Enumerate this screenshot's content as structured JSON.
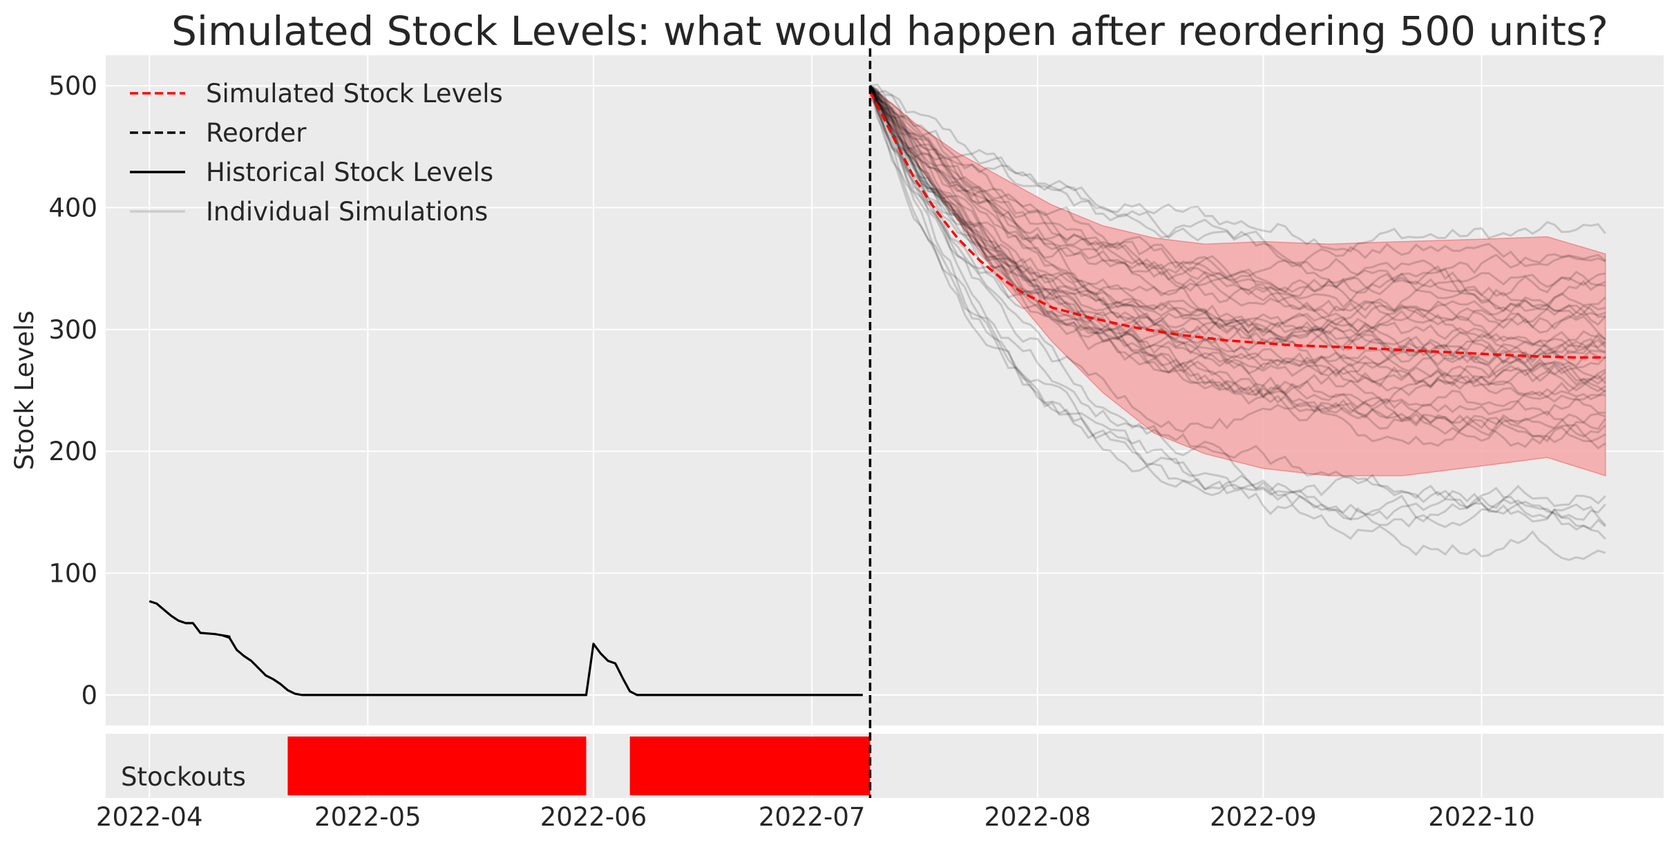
{
  "chart_data": [
    {
      "type": "line",
      "title": "Simulated Stock Levels: what would happen after reordering 500 units?",
      "ylabel": "Stock Levels",
      "ylim": [
        -25,
        525
      ],
      "xlim": [
        "2022-03-26",
        "2022-10-26"
      ],
      "yticks": [
        0,
        100,
        200,
        300,
        400,
        500
      ],
      "ytick_labels": [
        "0",
        "100",
        "200",
        "300",
        "400",
        "500"
      ],
      "xticks": [
        "2022-04-01",
        "2022-05-01",
        "2022-06-01",
        "2022-07-01",
        "2022-08-01",
        "2022-09-01",
        "2022-10-01"
      ],
      "xtick_labels": [
        "2022-04",
        "2022-05",
        "2022-06",
        "2022-07",
        "2022-08",
        "2022-09",
        "2022-10"
      ],
      "grid": true,
      "legend_position": "top-left",
      "legend": [
        {
          "label": "Simulated Stock Levels",
          "color": "#ff0000",
          "style": "dashed"
        },
        {
          "label": "Reorder",
          "color": "#000000",
          "style": "dashed"
        },
        {
          "label": "Historical Stock Levels",
          "color": "#000000",
          "style": "solid"
        },
        {
          "label": "Individual Simulations",
          "color": "#cccccc",
          "style": "solid"
        }
      ],
      "reorder_date": "2022-07-09",
      "historical": {
        "name": "Historical Stock Levels",
        "color": "#000000",
        "points": [
          [
            "2022-04-01",
            77
          ],
          [
            "2022-04-02",
            75
          ],
          [
            "2022-04-03",
            70
          ],
          [
            "2022-04-04",
            65
          ],
          [
            "2022-04-05",
            61
          ],
          [
            "2022-04-06",
            59
          ],
          [
            "2022-04-07",
            59
          ],
          [
            "2022-04-08",
            51
          ],
          [
            "2022-04-10",
            50
          ],
          [
            "2022-04-12",
            48
          ],
          [
            "2022-04-11",
            49
          ],
          [
            "2022-04-12",
            47
          ],
          [
            "2022-04-13",
            37
          ],
          [
            "2022-04-14",
            32
          ],
          [
            "2022-04-15",
            28
          ],
          [
            "2022-04-16",
            22
          ],
          [
            "2022-04-17",
            16
          ],
          [
            "2022-04-18",
            13
          ],
          [
            "2022-04-19",
            9
          ],
          [
            "2022-04-20",
            4
          ],
          [
            "2022-04-21",
            1
          ],
          [
            "2022-04-22",
            0
          ],
          [
            "2022-05-31",
            0
          ],
          [
            "2022-06-01",
            42
          ],
          [
            "2022-06-02",
            34
          ],
          [
            "2022-06-03",
            28
          ],
          [
            "2022-06-04",
            26
          ],
          [
            "2022-06-05",
            14
          ],
          [
            "2022-06-06",
            3
          ],
          [
            "2022-06-07",
            0
          ],
          [
            "2022-07-08",
            0
          ]
        ]
      },
      "simulated_mean": {
        "name": "Simulated Stock Levels",
        "color": "#ff0000",
        "points": [
          [
            "2022-07-09",
            495
          ],
          [
            "2022-07-12",
            460
          ],
          [
            "2022-07-15",
            425
          ],
          [
            "2022-07-18",
            398
          ],
          [
            "2022-07-21",
            375
          ],
          [
            "2022-07-24",
            357
          ],
          [
            "2022-07-27",
            342
          ],
          [
            "2022-07-30",
            330
          ],
          [
            "2022-08-03",
            318
          ],
          [
            "2022-08-08",
            310
          ],
          [
            "2022-08-14",
            302
          ],
          [
            "2022-08-20",
            296
          ],
          [
            "2022-08-27",
            291
          ],
          [
            "2022-09-05",
            287
          ],
          [
            "2022-09-14",
            285
          ],
          [
            "2022-09-24",
            282
          ],
          [
            "2022-10-01",
            280
          ],
          [
            "2022-10-08",
            278
          ],
          [
            "2022-10-14",
            277
          ],
          [
            "2022-10-18",
            277
          ]
        ]
      },
      "simulated_band": {
        "color": "#f4a7a7",
        "upper": [
          [
            "2022-07-09",
            500
          ],
          [
            "2022-07-15",
            470
          ],
          [
            "2022-07-21",
            445
          ],
          [
            "2022-07-27",
            425
          ],
          [
            "2022-08-03",
            402
          ],
          [
            "2022-08-10",
            385
          ],
          [
            "2022-08-17",
            375
          ],
          [
            "2022-08-24",
            370
          ],
          [
            "2022-09-01",
            372
          ],
          [
            "2022-09-10",
            370
          ],
          [
            "2022-09-20",
            372
          ],
          [
            "2022-10-01",
            374
          ],
          [
            "2022-10-10",
            376
          ],
          [
            "2022-10-18",
            362
          ]
        ],
        "lower": [
          [
            "2022-07-09",
            490
          ],
          [
            "2022-07-15",
            440
          ],
          [
            "2022-07-21",
            390
          ],
          [
            "2022-07-27",
            340
          ],
          [
            "2022-08-03",
            290
          ],
          [
            "2022-08-10",
            248
          ],
          [
            "2022-08-17",
            215
          ],
          [
            "2022-08-24",
            198
          ],
          [
            "2022-09-01",
            186
          ],
          [
            "2022-09-10",
            180
          ],
          [
            "2022-09-20",
            180
          ],
          [
            "2022-10-01",
            188
          ],
          [
            "2022-10-10",
            195
          ],
          [
            "2022-10-18",
            180
          ]
        ]
      },
      "individual_simulations": {
        "name": "Individual Simulations",
        "color": "#000000",
        "start_date": "2022-07-09",
        "end_date": "2022-10-18",
        "start_value": 500,
        "final_values": [
          375,
          360,
          350,
          342,
          335,
          330,
          325,
          320,
          315,
          310,
          305,
          300,
          296,
          292,
          288,
          285,
          282,
          280,
          276,
          272,
          268,
          265,
          260,
          256,
          252,
          248,
          244,
          240,
          236,
          230,
          225,
          220,
          215,
          210,
          160,
          155,
          150,
          145,
          140,
          122
        ]
      }
    },
    {
      "type": "bar",
      "ylabel": "",
      "label_text": "Stockouts",
      "color": "#ff0000",
      "intervals": [
        [
          "2022-04-20",
          "2022-05-31"
        ],
        [
          "2022-06-06",
          "2022-07-09"
        ]
      ]
    }
  ]
}
